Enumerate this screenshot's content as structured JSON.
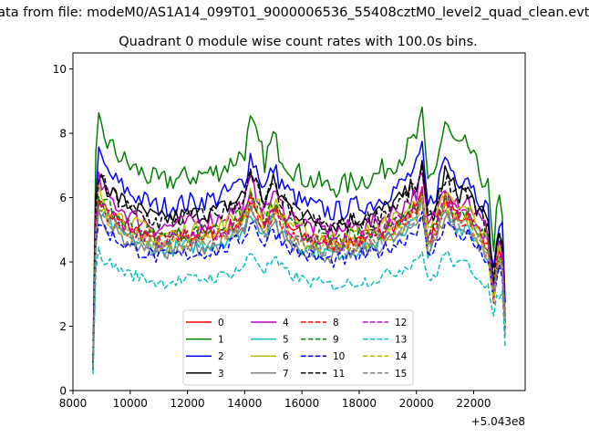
{
  "chart_data": {
    "type": "line",
    "suptitle": "Data from file: modeM0/AS1A14_099T01_9000006536_55408cztM0_level2_quad_clean.evt",
    "title": "Quadrant 0 module wise count rates with 100.0s bins.",
    "xlabel": "",
    "ylabel": "",
    "x_offset_label": "+5.043e8",
    "xlim": [
      8000,
      23800
    ],
    "ylim": [
      0,
      10.5
    ],
    "x_ticks": [
      8000,
      10000,
      12000,
      14000,
      16000,
      18000,
      20000,
      22000
    ],
    "y_ticks": [
      0,
      2,
      4,
      6,
      8,
      10
    ],
    "x_start": 8700,
    "x_end": 23100,
    "x_step": 100,
    "legend_location": "lower-center",
    "legend_columns": 4,
    "colors": {
      "red": "#ff0000",
      "green": "#008000",
      "blue": "#0000ff",
      "black": "#000000",
      "magenta": "#bf00bf",
      "cyan": "#00bfbf",
      "olive": "#bfbf00",
      "gray": "#808080"
    },
    "profile": {
      "x": [
        8700,
        8800,
        8900,
        9200,
        9600,
        10000,
        11000,
        12000,
        13000,
        13500,
        14000,
        14200,
        14400,
        14700,
        15000,
        15200,
        15500,
        16000,
        16500,
        17000,
        17500,
        18000,
        18500,
        19000,
        19500,
        20000,
        20200,
        20400,
        20700,
        21000,
        21200,
        21500,
        21800,
        22000,
        22300,
        22500,
        22700,
        22850,
        23000,
        23100
      ],
      "shape": [
        0.12,
        0.85,
        1.0,
        0.93,
        0.88,
        0.84,
        0.78,
        0.8,
        0.82,
        0.85,
        0.9,
        1.0,
        0.95,
        0.86,
        0.95,
        0.9,
        0.85,
        0.8,
        0.78,
        0.76,
        0.77,
        0.79,
        0.8,
        0.84,
        0.88,
        0.95,
        1.02,
        0.78,
        0.85,
        1.0,
        0.95,
        0.9,
        0.92,
        0.86,
        0.8,
        0.76,
        0.5,
        0.72,
        0.68,
        0.35
      ],
      "noise_amplitude": 0.045,
      "seed": 7
    },
    "series": [
      {
        "name": "0",
        "color": "#ff0000",
        "dash": "solid",
        "level": 6.0
      },
      {
        "name": "1",
        "color": "#008000",
        "dash": "solid",
        "level": 8.3
      },
      {
        "name": "2",
        "color": "#0000ff",
        "dash": "solid",
        "level": 7.3
      },
      {
        "name": "3",
        "color": "#000000",
        "dash": "solid",
        "level": 6.8
      },
      {
        "name": "4",
        "color": "#bf00bf",
        "dash": "solid",
        "level": 6.5
      },
      {
        "name": "5",
        "color": "#00bfbf",
        "dash": "solid",
        "level": 5.6
      },
      {
        "name": "6",
        "color": "#bfbf00",
        "dash": "solid",
        "level": 6.2
      },
      {
        "name": "7",
        "color": "#808080",
        "dash": "solid",
        "level": 5.5
      },
      {
        "name": "8",
        "color": "#ff0000",
        "dash": "dashed",
        "level": 5.9
      },
      {
        "name": "9",
        "color": "#008000",
        "dash": "dashed",
        "level": 6.1
      },
      {
        "name": "10",
        "color": "#0000ff",
        "dash": "dashed",
        "level": 5.3
      },
      {
        "name": "11",
        "color": "#000000",
        "dash": "dashed",
        "level": 6.7
      },
      {
        "name": "12",
        "color": "#bf00bf",
        "dash": "dashed",
        "level": 6.0
      },
      {
        "name": "13",
        "color": "#00bfbf",
        "dash": "dashed",
        "level": 4.3
      },
      {
        "name": "14",
        "color": "#bfbf00",
        "dash": "dashed",
        "level": 5.8
      },
      {
        "name": "15",
        "color": "#808080",
        "dash": "dashed",
        "level": 5.7
      }
    ]
  }
}
